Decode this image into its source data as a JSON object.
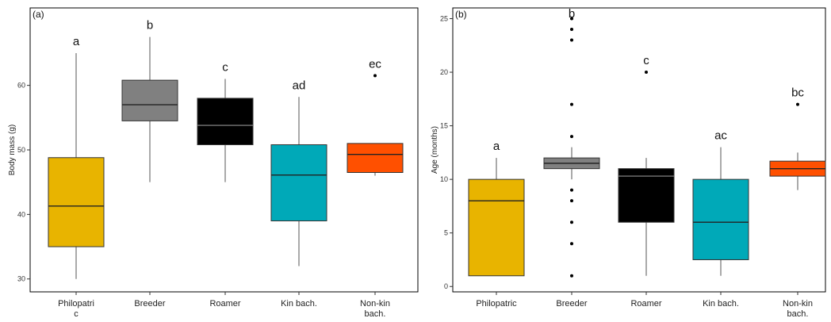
{
  "chart_data": [
    {
      "type": "boxplot",
      "panel_label": "(a)",
      "ylabel": "Body mass (g)",
      "ylim": [
        28,
        72
      ],
      "yticks": [
        30,
        40,
        50,
        60
      ],
      "categories": [
        {
          "label_lines": [
            "Philopatri",
            "c"
          ],
          "color": "#E8B400",
          "whisker_low": 30,
          "q1": 35,
          "median": 41.3,
          "q3": 48.8,
          "whisker_high": 65,
          "outliers": [],
          "letter": "a"
        },
        {
          "label_lines": [
            "Breeder"
          ],
          "color": "#808080",
          "whisker_low": 45,
          "q1": 54.5,
          "median": 57,
          "q3": 60.8,
          "whisker_high": 67.5,
          "outliers": [],
          "letter": "b"
        },
        {
          "label_lines": [
            "Roamer"
          ],
          "color": "#000000",
          "whisker_low": 45,
          "q1": 50.8,
          "median": 53.8,
          "q3": 58,
          "whisker_high": 61,
          "outliers": [],
          "letter": "c"
        },
        {
          "label_lines": [
            "Kin bach."
          ],
          "color": "#00A9B8",
          "whisker_low": 32,
          "q1": 39,
          "median": 46.1,
          "q3": 50.8,
          "whisker_high": 58.2,
          "outliers": [],
          "letter": "ad"
        },
        {
          "label_lines": [
            "Non-kin",
            "bach."
          ],
          "color": "#FF5000",
          "whisker_low": 46,
          "q1": 46.5,
          "median": 49.3,
          "q3": 51,
          "whisker_high": 51,
          "outliers": [
            61.5
          ],
          "letter": "ec"
        }
      ]
    },
    {
      "type": "boxplot",
      "panel_label": "(b)",
      "ylabel": "Age (months)",
      "ylim": [
        -0.5,
        26
      ],
      "yticks": [
        0,
        5,
        10,
        15,
        20,
        25
      ],
      "categories": [
        {
          "label_lines": [
            "Philopatric"
          ],
          "color": "#E8B400",
          "whisker_low": 1,
          "q1": 1,
          "median": 8,
          "q3": 10,
          "whisker_high": 12,
          "outliers": [],
          "letter": "a"
        },
        {
          "label_lines": [
            "Breeder"
          ],
          "color": "#808080",
          "whisker_low": 10,
          "q1": 11,
          "median": 11.5,
          "q3": 12,
          "whisker_high": 13,
          "outliers": [
            1,
            4,
            6,
            8,
            9,
            14,
            17,
            23,
            24,
            25
          ],
          "letter": "b"
        },
        {
          "label_lines": [
            "Roamer"
          ],
          "color": "#000000",
          "whisker_low": 1,
          "q1": 6,
          "median": 10.3,
          "q3": 11,
          "whisker_high": 12,
          "outliers": [
            20
          ],
          "letter": "c"
        },
        {
          "label_lines": [
            "Kin bach."
          ],
          "color": "#00A9B8",
          "whisker_low": 1,
          "q1": 2.5,
          "median": 6,
          "q3": 10,
          "whisker_high": 13,
          "outliers": [],
          "letter": "ac"
        },
        {
          "label_lines": [
            "Non-kin",
            "bach."
          ],
          "color": "#FF5000",
          "whisker_low": 9,
          "q1": 10.3,
          "median": 11,
          "q3": 11.7,
          "whisker_high": 12.5,
          "outliers": [
            17
          ],
          "letter": "bc"
        }
      ]
    }
  ]
}
